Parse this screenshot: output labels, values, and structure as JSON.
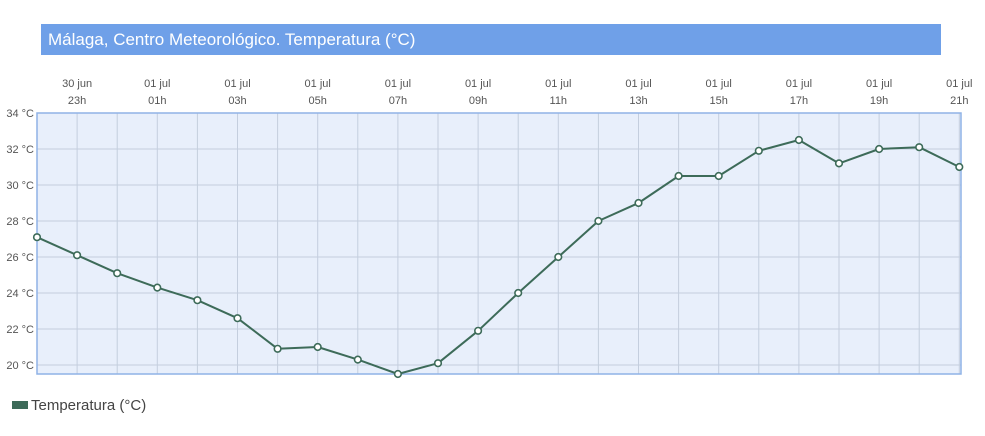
{
  "title": "Málaga, Centro Meteorológico. Temperatura (°C)",
  "chart_data": {
    "type": "line",
    "title": "Málaga, Centro Meteorológico. Temperatura (°C)",
    "x_tick_labels": [
      {
        "date": "30 jun",
        "hour": "23h"
      },
      {
        "date": "01 jul",
        "hour": "01h"
      },
      {
        "date": "01 jul",
        "hour": "03h"
      },
      {
        "date": "01 jul",
        "hour": "05h"
      },
      {
        "date": "01 jul",
        "hour": "07h"
      },
      {
        "date": "01 jul",
        "hour": "09h"
      },
      {
        "date": "01 jul",
        "hour": "11h"
      },
      {
        "date": "01 jul",
        "hour": "13h"
      },
      {
        "date": "01 jul",
        "hour": "15h"
      },
      {
        "date": "01 jul",
        "hour": "17h"
      },
      {
        "date": "01 jul",
        "hour": "19h"
      },
      {
        "date": "01 jul",
        "hour": "21h"
      }
    ],
    "y_tick_labels": [
      "34 °C",
      "32 °C",
      "30 °C",
      "28 °C",
      "26 °C",
      "24 °C",
      "22 °C",
      "20 °C"
    ],
    "y_ticks": [
      34,
      32,
      30,
      28,
      26,
      24,
      22,
      20
    ],
    "ylim": [
      19.5,
      34
    ],
    "grid": true,
    "legend_position": "bottom-left",
    "series": [
      {
        "name": "Temperatura (°C)",
        "color": "#3d6b59",
        "x": [
          "30 jun 22h",
          "30 jun 23h",
          "01 jul 00h",
          "01 jul 01h",
          "01 jul 02h",
          "01 jul 03h",
          "01 jul 04h",
          "01 jul 05h",
          "01 jul 06h",
          "01 jul 07h",
          "01 jul 08h",
          "01 jul 09h",
          "01 jul 10h",
          "01 jul 11h",
          "01 jul 12h",
          "01 jul 13h",
          "01 jul 14h",
          "01 jul 15h",
          "01 jul 16h",
          "01 jul 17h",
          "01 jul 18h",
          "01 jul 19h",
          "01 jul 20h",
          "01 jul 21h"
        ],
        "values": [
          27.1,
          26.1,
          25.1,
          24.3,
          23.6,
          22.6,
          20.9,
          21.0,
          20.3,
          19.5,
          20.1,
          21.9,
          24.0,
          26.0,
          28.0,
          29.0,
          30.5,
          30.5,
          31.9,
          32.5,
          31.2,
          32.0,
          32.1,
          31.0
        ]
      }
    ]
  },
  "colors": {
    "title_bar": "#6fa0e8",
    "plot_background": "#e8effb",
    "plot_border": "#8fb2e6",
    "grid": "#c4cede",
    "line": "#3d6b59",
    "marker_fill": "#ffffff"
  },
  "legend": {
    "label": "Temperatura (°C)"
  }
}
